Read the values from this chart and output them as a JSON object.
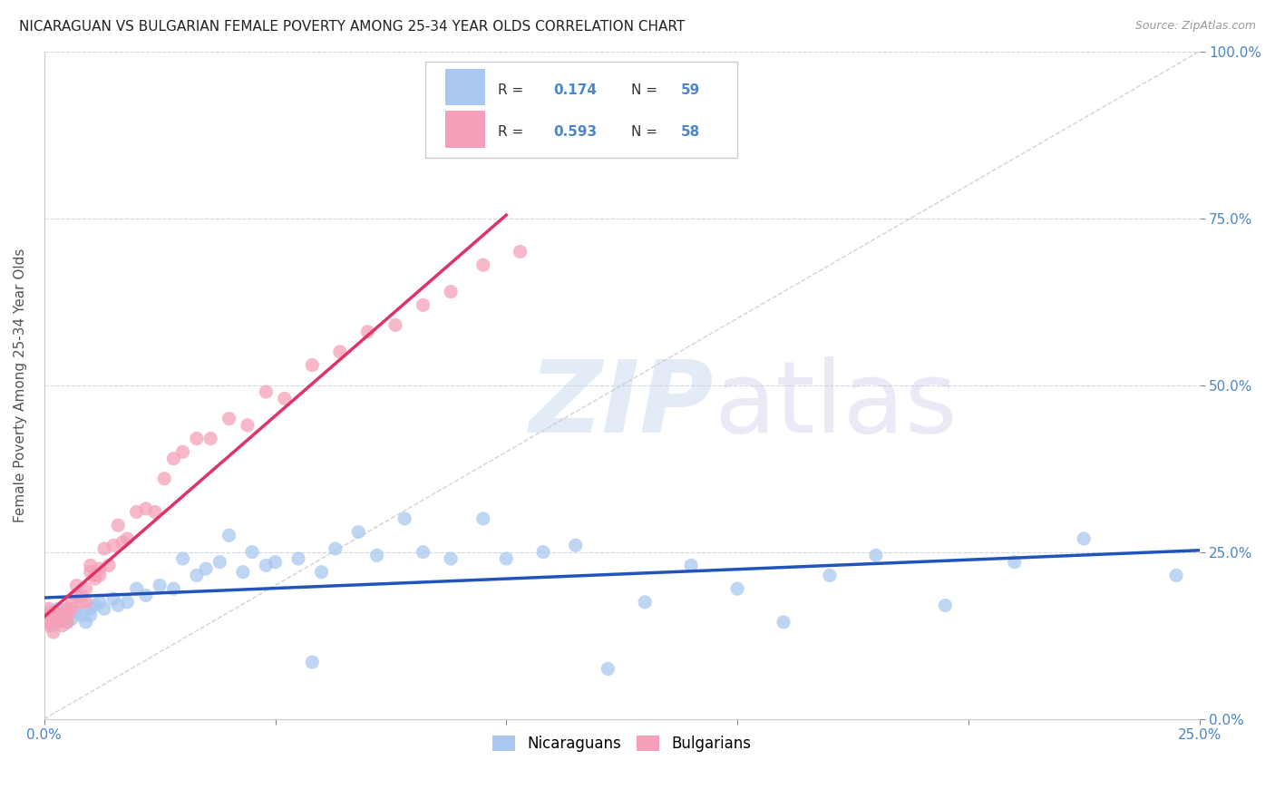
{
  "title": "NICARAGUAN VS BULGARIAN FEMALE POVERTY AMONG 25-34 YEAR OLDS CORRELATION CHART",
  "source": "Source: ZipAtlas.com",
  "ylabel": "Female Poverty Among 25-34 Year Olds",
  "xlim": [
    0.0,
    0.25
  ],
  "ylim": [
    0.0,
    1.0
  ],
  "xtick_vals": [
    0.0,
    0.05,
    0.1,
    0.15,
    0.2,
    0.25
  ],
  "ytick_vals": [
    0.0,
    0.25,
    0.5,
    0.75,
    1.0
  ],
  "ytick_labels_right": [
    "0.0%",
    "25.0%",
    "50.0%",
    "75.0%",
    "100.0%"
  ],
  "blue_color": "#a8c8f0",
  "pink_color": "#f5a0b8",
  "blue_line_color": "#2255bb",
  "pink_line_color": "#dd3366",
  "diagonal_color": "#c8c8c8",
  "R_nicaraguan": 0.174,
  "N_nicaraguan": 59,
  "R_bulgarian": 0.593,
  "N_bulgarian": 58,
  "legend_label_1": "Nicaraguans",
  "legend_label_2": "Bulgarians",
  "title_color": "#222222",
  "axis_color": "#4a86c8",
  "legend_R_color": "#333333",
  "legend_N_color": "#4a86c8",
  "nicaraguan_x": [
    0.0,
    0.001,
    0.001,
    0.002,
    0.002,
    0.003,
    0.003,
    0.004,
    0.005,
    0.005,
    0.006,
    0.007,
    0.008,
    0.009,
    0.01,
    0.01,
    0.011,
    0.012,
    0.013,
    0.015,
    0.016,
    0.018,
    0.02,
    0.022,
    0.025,
    0.028,
    0.03,
    0.033,
    0.035,
    0.038,
    0.04,
    0.043,
    0.045,
    0.048,
    0.05,
    0.055,
    0.058,
    0.06,
    0.063,
    0.068,
    0.072,
    0.078,
    0.082,
    0.088,
    0.095,
    0.1,
    0.108,
    0.115,
    0.122,
    0.13,
    0.14,
    0.15,
    0.16,
    0.17,
    0.18,
    0.195,
    0.21,
    0.225,
    0.245
  ],
  "nicaraguan_y": [
    0.15,
    0.16,
    0.145,
    0.155,
    0.14,
    0.165,
    0.15,
    0.155,
    0.145,
    0.165,
    0.15,
    0.16,
    0.155,
    0.145,
    0.165,
    0.155,
    0.17,
    0.175,
    0.165,
    0.18,
    0.17,
    0.175,
    0.195,
    0.185,
    0.2,
    0.195,
    0.24,
    0.215,
    0.225,
    0.235,
    0.275,
    0.22,
    0.25,
    0.23,
    0.235,
    0.24,
    0.085,
    0.22,
    0.255,
    0.28,
    0.245,
    0.3,
    0.25,
    0.24,
    0.3,
    0.24,
    0.25,
    0.26,
    0.075,
    0.175,
    0.23,
    0.195,
    0.145,
    0.215,
    0.245,
    0.17,
    0.235,
    0.27,
    0.215
  ],
  "bulgarian_x": [
    0.0,
    0.0,
    0.001,
    0.001,
    0.001,
    0.001,
    0.002,
    0.002,
    0.002,
    0.003,
    0.003,
    0.003,
    0.004,
    0.004,
    0.004,
    0.005,
    0.005,
    0.005,
    0.006,
    0.006,
    0.007,
    0.007,
    0.008,
    0.008,
    0.009,
    0.009,
    0.01,
    0.01,
    0.011,
    0.011,
    0.012,
    0.012,
    0.013,
    0.014,
    0.015,
    0.016,
    0.017,
    0.018,
    0.02,
    0.022,
    0.024,
    0.026,
    0.028,
    0.03,
    0.033,
    0.036,
    0.04,
    0.044,
    0.048,
    0.052,
    0.058,
    0.064,
    0.07,
    0.076,
    0.082,
    0.088,
    0.095,
    0.103
  ],
  "bulgarian_y": [
    0.155,
    0.145,
    0.165,
    0.14,
    0.155,
    0.145,
    0.13,
    0.16,
    0.15,
    0.155,
    0.145,
    0.16,
    0.15,
    0.155,
    0.14,
    0.165,
    0.155,
    0.145,
    0.175,
    0.165,
    0.2,
    0.185,
    0.175,
    0.185,
    0.195,
    0.175,
    0.22,
    0.23,
    0.21,
    0.215,
    0.225,
    0.215,
    0.255,
    0.23,
    0.26,
    0.29,
    0.265,
    0.27,
    0.31,
    0.315,
    0.31,
    0.36,
    0.39,
    0.4,
    0.42,
    0.42,
    0.45,
    0.44,
    0.49,
    0.48,
    0.53,
    0.55,
    0.58,
    0.59,
    0.62,
    0.64,
    0.68,
    0.7
  ]
}
